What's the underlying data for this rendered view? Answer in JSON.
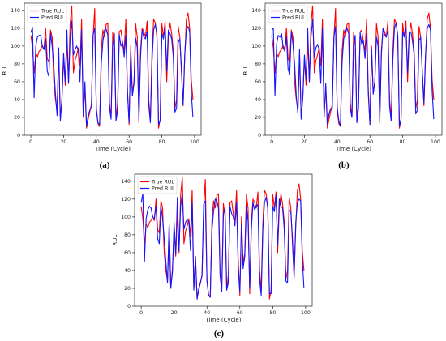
{
  "colors": {
    "true": "#ff0000",
    "pred": "#1515ff"
  },
  "chart_data": [
    {
      "type": "line",
      "panel_label": "(a)",
      "xlabel": "Time (Cycle)",
      "ylabel": "RUL",
      "xlim": [
        -4,
        104
      ],
      "ylim": [
        0,
        148
      ],
      "xticks": [
        0,
        20,
        40,
        60,
        80,
        100
      ],
      "yticks": [
        0,
        20,
        40,
        60,
        80,
        100,
        120,
        140
      ],
      "legend": "top-left",
      "x": [
        0,
        1,
        2,
        3,
        4,
        5,
        6,
        7,
        8,
        9,
        10,
        11,
        12,
        13,
        14,
        15,
        16,
        17,
        18,
        19,
        20,
        21,
        22,
        23,
        24,
        25,
        26,
        27,
        28,
        29,
        30,
        31,
        32,
        33,
        34,
        35,
        36,
        37,
        38,
        39,
        40,
        41,
        42,
        43,
        44,
        45,
        46,
        47,
        48,
        49,
        50,
        51,
        52,
        53,
        54,
        55,
        56,
        57,
        58,
        59,
        60,
        61,
        62,
        63,
        64,
        65,
        66,
        67,
        68,
        69,
        70,
        71,
        72,
        73,
        74,
        75,
        76,
        77,
        78,
        79,
        80,
        81,
        82,
        83,
        84,
        85,
        86,
        87,
        88,
        89,
        90,
        91,
        92,
        93,
        94,
        95,
        96,
        97,
        98,
        99
      ],
      "series": [
        {
          "name": "True RUL",
          "color": "#ff0000",
          "values": [
            112,
            98,
            70,
            92,
            88,
            94,
            96,
            101,
            96,
            120,
            86,
            82,
            118,
            110,
            60,
            40,
            28,
            90,
            20,
            42,
            86,
            56,
            104,
            60,
            125,
            145,
            70,
            84,
            90,
            98,
            78,
            130,
            20,
            55,
            8,
            18,
            26,
            35,
            110,
            142,
            28,
            13,
            10,
            95,
            118,
            110,
            124,
            126,
            36,
            20,
            115,
            100,
            18,
            35,
            116,
            118,
            104,
            95,
            130,
            52,
            12,
            100,
            48,
            60,
            125,
            110,
            14,
            95,
            120,
            116,
            110,
            128,
            40,
            18,
            94,
            130,
            126,
            110,
            8,
            18,
            125,
            110,
            128,
            60,
            110,
            126,
            114,
            95,
            30,
            40,
            122,
            110,
            70,
            33,
            88,
            130,
            137,
            120,
            62,
            40
          ]
        },
        {
          "name": "Pred RUL",
          "color": "#1515ff",
          "values": [
            115,
            121,
            42,
            100,
            110,
            112,
            112,
            100,
            96,
            108,
            72,
            66,
            114,
            100,
            78,
            47,
            22,
            98,
            16,
            40,
            92,
            60,
            118,
            58,
            108,
            128,
            90,
            96,
            100,
            95,
            60,
            118,
            22,
            60,
            10,
            22,
            28,
            32,
            112,
            120,
            30,
            14,
            12,
            80,
            105,
            118,
            119,
            112,
            32,
            18,
            100,
            114,
            16,
            28,
            113,
            100,
            104,
            88,
            112,
            48,
            14,
            94,
            44,
            58,
            109,
            98,
            18,
            88,
            118,
            110,
            108,
            116,
            34,
            14,
            82,
            118,
            124,
            114,
            12,
            16,
            114,
            108,
            122,
            72,
            118,
            114,
            108,
            88,
            26,
            30,
            104,
            108,
            74,
            34,
            90,
            118,
            122,
            116,
            48,
            20
          ]
        }
      ]
    },
    {
      "type": "line",
      "panel_label": "(b)",
      "xlabel": "Time (Cycle)",
      "ylabel": "RUL",
      "xlim": [
        -4,
        104
      ],
      "ylim": [
        0,
        148
      ],
      "xticks": [
        0,
        20,
        40,
        60,
        80,
        100
      ],
      "yticks": [
        0,
        20,
        40,
        60,
        80,
        100,
        120,
        140
      ],
      "legend": "top-left",
      "x": [
        0,
        1,
        2,
        3,
        4,
        5,
        6,
        7,
        8,
        9,
        10,
        11,
        12,
        13,
        14,
        15,
        16,
        17,
        18,
        19,
        20,
        21,
        22,
        23,
        24,
        25,
        26,
        27,
        28,
        29,
        30,
        31,
        32,
        33,
        34,
        35,
        36,
        37,
        38,
        39,
        40,
        41,
        42,
        43,
        44,
        45,
        46,
        47,
        48,
        49,
        50,
        51,
        52,
        53,
        54,
        55,
        56,
        57,
        58,
        59,
        60,
        61,
        62,
        63,
        64,
        65,
        66,
        67,
        68,
        69,
        70,
        71,
        72,
        73,
        74,
        75,
        76,
        77,
        78,
        79,
        80,
        81,
        82,
        83,
        84,
        85,
        86,
        87,
        88,
        89,
        90,
        91,
        92,
        93,
        94,
        95,
        96,
        97,
        98,
        99
      ],
      "series": [
        {
          "name": "True RUL",
          "color": "#ff0000",
          "values": [
            112,
            98,
            70,
            92,
            88,
            94,
            96,
            101,
            96,
            120,
            86,
            82,
            118,
            110,
            60,
            40,
            28,
            90,
            20,
            42,
            86,
            56,
            104,
            60,
            125,
            145,
            70,
            84,
            90,
            98,
            78,
            130,
            20,
            55,
            8,
            18,
            26,
            35,
            110,
            142,
            28,
            13,
            10,
            95,
            118,
            110,
            124,
            126,
            36,
            20,
            115,
            100,
            18,
            35,
            116,
            118,
            104,
            95,
            130,
            52,
            12,
            100,
            48,
            60,
            125,
            110,
            14,
            95,
            120,
            116,
            110,
            128,
            40,
            18,
            94,
            130,
            126,
            110,
            8,
            18,
            125,
            110,
            128,
            60,
            110,
            126,
            114,
            95,
            30,
            40,
            122,
            110,
            70,
            33,
            88,
            130,
            137,
            120,
            62,
            40
          ]
        },
        {
          "name": "Pred RUL",
          "color": "#1515ff",
          "values": [
            118,
            120,
            44,
            102,
            112,
            110,
            114,
            98,
            94,
            110,
            74,
            68,
            116,
            102,
            80,
            45,
            24,
            96,
            18,
            42,
            90,
            62,
            120,
            60,
            110,
            130,
            88,
            98,
            102,
            96,
            58,
            120,
            20,
            58,
            12,
            24,
            30,
            30,
            110,
            122,
            32,
            16,
            10,
            82,
            108,
            116,
            120,
            114,
            30,
            20,
            102,
            112,
            14,
            30,
            115,
            102,
            106,
            86,
            114,
            46,
            12,
            96,
            46,
            60,
            110,
            100,
            16,
            90,
            120,
            112,
            110,
            118,
            32,
            16,
            84,
            120,
            126,
            112,
            10,
            18,
            116,
            110,
            120,
            70,
            116,
            116,
            106,
            90,
            24,
            28,
            106,
            110,
            72,
            36,
            92,
            120,
            124,
            118,
            50,
            18
          ]
        }
      ]
    },
    {
      "type": "line",
      "panel_label": "(c)",
      "xlabel": "Time (Cycle)",
      "ylabel": "RUL",
      "xlim": [
        -4,
        104
      ],
      "ylim": [
        0,
        148
      ],
      "xticks": [
        0,
        20,
        40,
        60,
        80,
        100
      ],
      "yticks": [
        0,
        20,
        40,
        60,
        80,
        100,
        120,
        140
      ],
      "legend": "top-left",
      "x": [
        0,
        1,
        2,
        3,
        4,
        5,
        6,
        7,
        8,
        9,
        10,
        11,
        12,
        13,
        14,
        15,
        16,
        17,
        18,
        19,
        20,
        21,
        22,
        23,
        24,
        25,
        26,
        27,
        28,
        29,
        30,
        31,
        32,
        33,
        34,
        35,
        36,
        37,
        38,
        39,
        40,
        41,
        42,
        43,
        44,
        45,
        46,
        47,
        48,
        49,
        50,
        51,
        52,
        53,
        54,
        55,
        56,
        57,
        58,
        59,
        60,
        61,
        62,
        63,
        64,
        65,
        66,
        67,
        68,
        69,
        70,
        71,
        72,
        73,
        74,
        75,
        76,
        77,
        78,
        79,
        80,
        81,
        82,
        83,
        84,
        85,
        86,
        87,
        88,
        89,
        90,
        91,
        92,
        93,
        94,
        95,
        96,
        97,
        98,
        99
      ],
      "series": [
        {
          "name": "True RUL",
          "color": "#ff0000",
          "values": [
            112,
            98,
            70,
            92,
            88,
            94,
            96,
            101,
            96,
            120,
            86,
            82,
            118,
            110,
            60,
            40,
            28,
            90,
            20,
            42,
            86,
            56,
            104,
            60,
            125,
            145,
            70,
            84,
            90,
            98,
            78,
            130,
            20,
            55,
            8,
            18,
            26,
            35,
            110,
            142,
            28,
            13,
            10,
            95,
            118,
            110,
            124,
            126,
            36,
            20,
            115,
            100,
            18,
            35,
            116,
            118,
            104,
            95,
            130,
            52,
            12,
            100,
            48,
            60,
            125,
            110,
            14,
            95,
            120,
            116,
            110,
            128,
            40,
            18,
            94,
            130,
            126,
            110,
            8,
            18,
            125,
            110,
            128,
            60,
            110,
            126,
            114,
            95,
            30,
            40,
            122,
            110,
            70,
            33,
            88,
            130,
            137,
            120,
            62,
            40
          ]
        },
        {
          "name": "Pred RUL",
          "color": "#1515ff",
          "values": [
            116,
            126,
            50,
            98,
            108,
            112,
            110,
            100,
            98,
            112,
            76,
            70,
            112,
            98,
            76,
            50,
            26,
            92,
            20,
            38,
            94,
            58,
            122,
            62,
            112,
            126,
            86,
            94,
            98,
            94,
            62,
            116,
            18,
            56,
            8,
            20,
            26,
            34,
            114,
            118,
            28,
            12,
            10,
            84,
            106,
            120,
            118,
            110,
            34,
            16,
            104,
            110,
            18,
            26,
            112,
            104,
            100,
            90,
            116,
            44,
            16,
            92,
            42,
            56,
            112,
            96,
            20,
            86,
            116,
            108,
            112,
            114,
            30,
            12,
            86,
            116,
            122,
            110,
            14,
            14,
            112,
            106,
            124,
            68,
            120,
            112,
            110,
            86,
            28,
            26,
            108,
            106,
            76,
            32,
            94,
            116,
            120,
            118,
            52,
            20
          ]
        }
      ]
    }
  ]
}
